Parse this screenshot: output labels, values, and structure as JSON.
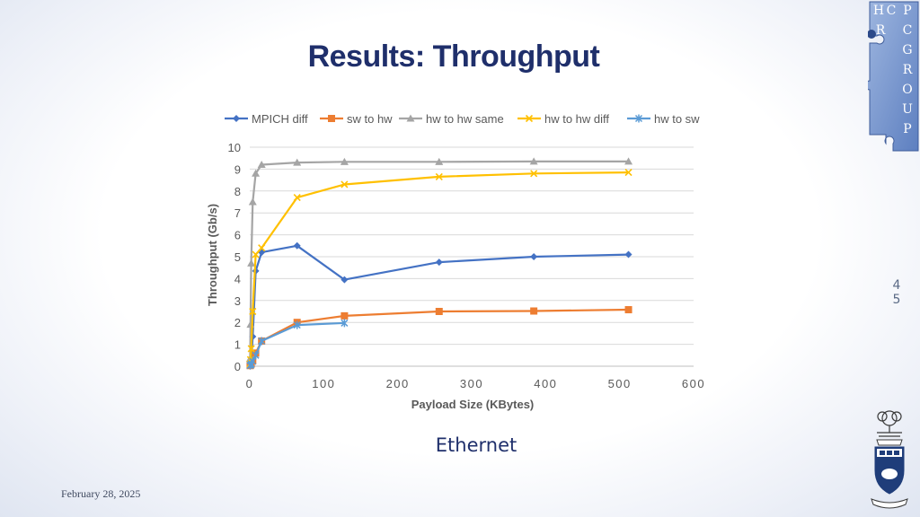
{
  "slide": {
    "title": "Results: Throughput",
    "caption": "Ethernet",
    "date": "February 28, 2025",
    "page_number": "45"
  },
  "logos": {
    "group_logo_letters": [
      "H",
      "P",
      "C",
      "R",
      "C",
      "G",
      "R",
      "O",
      "U",
      "P"
    ],
    "group_logo_icon": "puzzle-logo-icon",
    "crest_icon": "university-crest-icon"
  },
  "chart_data": {
    "type": "line",
    "xlabel": "Payload Size (KBytes)",
    "ylabel": "Throughput  (Gb/s)",
    "xlim": [
      0,
      600
    ],
    "ylim": [
      0,
      10
    ],
    "xticks": [
      0,
      100,
      200,
      300,
      400,
      500,
      600
    ],
    "yticks": [
      0,
      1,
      2,
      3,
      4,
      5,
      6,
      7,
      8,
      9,
      10
    ],
    "grid": "horizontal",
    "legend_position": "top",
    "series": [
      {
        "name": "MPICH diff",
        "color": "#4472c4",
        "marker": "diamond",
        "x": [
          0.5,
          1,
          2,
          4,
          8,
          16,
          64,
          128,
          256,
          384,
          512
        ],
        "y": [
          0.05,
          0.12,
          0.3,
          1.35,
          4.35,
          5.2,
          5.5,
          3.95,
          4.75,
          5.0,
          5.1
        ]
      },
      {
        "name": "sw to hw",
        "color": "#ed7d31",
        "marker": "square",
        "x": [
          0.5,
          1,
          2,
          4,
          8,
          16,
          64,
          128,
          256,
          384,
          512
        ],
        "y": [
          0.03,
          0.05,
          0.1,
          0.25,
          0.6,
          1.15,
          2.0,
          2.3,
          2.5,
          2.52,
          2.58
        ]
      },
      {
        "name": "hw to hw same",
        "color": "#a5a5a5",
        "marker": "triangle",
        "x": [
          0.5,
          1,
          2,
          4,
          8,
          16,
          64,
          128,
          256,
          384,
          512
        ],
        "y": [
          0.35,
          1.9,
          4.7,
          7.5,
          8.8,
          9.2,
          9.3,
          9.33,
          9.33,
          9.35,
          9.35
        ]
      },
      {
        "name": "hw to hw diff",
        "color": "#ffc000",
        "marker": "x",
        "x": [
          0.5,
          1,
          2,
          4,
          8,
          16,
          64,
          128,
          256,
          384,
          512
        ],
        "y": [
          0.1,
          0.3,
          0.8,
          2.5,
          5.1,
          5.4,
          7.7,
          8.3,
          8.65,
          8.8,
          8.85
        ]
      },
      {
        "name": "hw to sw",
        "color": "#5b9bd5",
        "marker": "star",
        "x": [
          0.5,
          1,
          2,
          4,
          8,
          16,
          64,
          128
        ],
        "y": [
          0.03,
          0.05,
          0.1,
          0.22,
          0.5,
          1.15,
          1.88,
          1.97
        ]
      }
    ]
  }
}
